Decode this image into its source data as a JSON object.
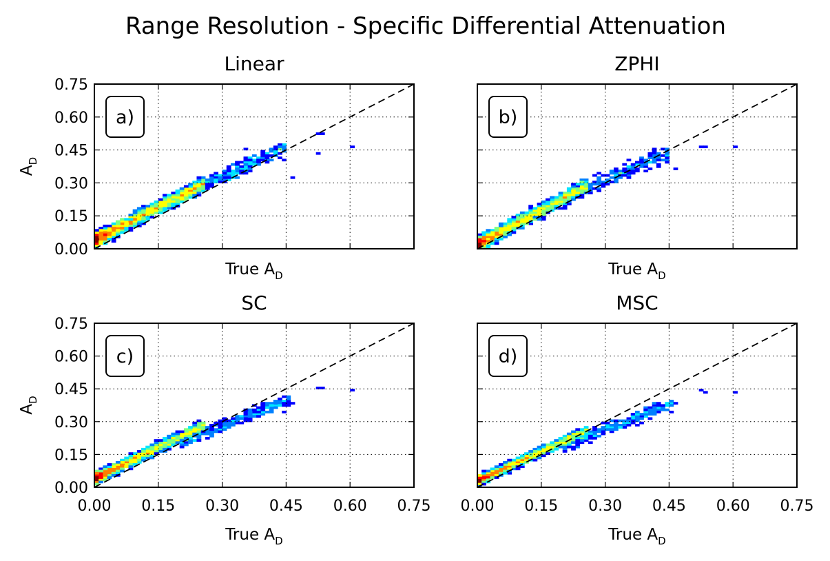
{
  "figure": {
    "title": "Range Resolution - Specific Differential Attenuation"
  },
  "chart_data": [
    {
      "type": "heatmap",
      "panel_label": "a)",
      "title": "Linear",
      "xlabel": "True A",
      "xlabel_sub": "D",
      "ylabel": "A",
      "ylabel_sub": "D",
      "xlim": [
        0,
        0.75
      ],
      "ylim": [
        0,
        0.75
      ],
      "xticks": [
        "0.00",
        "0.15",
        "0.30",
        "0.45",
        "0.60",
        "0.75"
      ],
      "yticks": [
        "0.00",
        "0.15",
        "0.30",
        "0.45",
        "0.60",
        "0.75"
      ],
      "show_xticklabels": false,
      "show_yticklabels": true,
      "show_ylabel": true,
      "grid": true,
      "reference_line": "1:1 dashed",
      "clusters": [
        {
          "x": [
            0.0,
            0.26
          ],
          "y": [
            0.04,
            0.3
          ],
          "y_at_x0": 0.04,
          "slope": 1.0,
          "spread": 0.045,
          "density": "high"
        },
        {
          "x": [
            0.2,
            0.45
          ],
          "y": [
            0.25,
            0.45
          ],
          "y_at_x0": 0.06,
          "slope": 0.9,
          "spread": 0.05,
          "density": "low"
        }
      ],
      "outliers": [
        [
          0.53,
          0.52
        ],
        [
          0.52,
          0.52
        ],
        [
          0.6,
          0.47
        ],
        [
          0.52,
          0.43
        ],
        [
          0.44,
          0.4
        ],
        [
          0.46,
          0.32
        ],
        [
          0.35,
          0.45
        ]
      ]
    },
    {
      "type": "heatmap",
      "panel_label": "b)",
      "title": "ZPHI",
      "xlabel": "True A",
      "xlabel_sub": "D",
      "ylabel": "A",
      "ylabel_sub": "D",
      "xlim": [
        0,
        0.75
      ],
      "ylim": [
        0,
        0.75
      ],
      "xticks": [
        "0.00",
        "0.15",
        "0.30",
        "0.45",
        "0.60",
        "0.75"
      ],
      "yticks": [
        "0.00",
        "0.15",
        "0.30",
        "0.45",
        "0.60",
        "0.75"
      ],
      "show_xticklabels": false,
      "show_yticklabels": false,
      "show_ylabel": false,
      "grid": true,
      "reference_line": "1:1 dashed",
      "clusters": [
        {
          "x": [
            0.0,
            0.26
          ],
          "y": [
            0.02,
            0.3
          ],
          "y_at_x0": 0.02,
          "slope": 1.05,
          "spread": 0.045,
          "density": "high"
        },
        {
          "x": [
            0.2,
            0.45
          ],
          "y": [
            0.25,
            0.42
          ],
          "y_at_x0": 0.06,
          "slope": 0.85,
          "spread": 0.05,
          "density": "low"
        }
      ],
      "outliers": [
        [
          0.53,
          0.47
        ],
        [
          0.52,
          0.46
        ],
        [
          0.6,
          0.46
        ],
        [
          0.44,
          0.39
        ],
        [
          0.46,
          0.36
        ],
        [
          0.35,
          0.4
        ]
      ]
    },
    {
      "type": "heatmap",
      "panel_label": "c)",
      "title": "SC",
      "xlabel": "True A",
      "xlabel_sub": "D",
      "ylabel": "A",
      "ylabel_sub": "D",
      "xlim": [
        0,
        0.75
      ],
      "ylim": [
        0,
        0.75
      ],
      "xticks": [
        "0.00",
        "0.15",
        "0.30",
        "0.45",
        "0.60",
        "0.75"
      ],
      "yticks": [
        "0.00",
        "0.15",
        "0.30",
        "0.45",
        "0.60",
        "0.75"
      ],
      "show_xticklabels": true,
      "show_yticklabels": true,
      "show_ylabel": true,
      "grid": true,
      "reference_line": "1:1 dashed",
      "clusters": [
        {
          "x": [
            0.0,
            0.26
          ],
          "y": [
            0.04,
            0.27
          ],
          "y_at_x0": 0.04,
          "slope": 0.95,
          "spread": 0.035,
          "density": "high"
        },
        {
          "x": [
            0.2,
            0.46
          ],
          "y": [
            0.2,
            0.38
          ],
          "y_at_x0": 0.04,
          "slope": 0.8,
          "spread": 0.04,
          "density": "low"
        }
      ],
      "outliers": [
        [
          0.53,
          0.45
        ],
        [
          0.52,
          0.45
        ],
        [
          0.6,
          0.44
        ],
        [
          0.46,
          0.38
        ],
        [
          0.44,
          0.34
        ]
      ]
    },
    {
      "type": "heatmap",
      "panel_label": "d)",
      "title": "MSC",
      "xlabel": "True A",
      "xlabel_sub": "D",
      "ylabel": "A",
      "ylabel_sub": "D",
      "xlim": [
        0,
        0.75
      ],
      "ylim": [
        0,
        0.75
      ],
      "xticks": [
        "0.00",
        "0.15",
        "0.30",
        "0.45",
        "0.60",
        "0.75"
      ],
      "yticks": [
        "0.00",
        "0.15",
        "0.30",
        "0.45",
        "0.60",
        "0.75"
      ],
      "show_xticklabels": true,
      "show_yticklabels": false,
      "show_ylabel": false,
      "grid": true,
      "reference_line": "1:1 dashed",
      "clusters": [
        {
          "x": [
            0.0,
            0.26
          ],
          "y": [
            0.03,
            0.25
          ],
          "y_at_x0": 0.03,
          "slope": 0.9,
          "spread": 0.03,
          "density": "high"
        },
        {
          "x": [
            0.2,
            0.46
          ],
          "y": [
            0.18,
            0.36
          ],
          "y_at_x0": 0.03,
          "slope": 0.78,
          "spread": 0.04,
          "density": "low"
        }
      ],
      "outliers": [
        [
          0.53,
          0.43
        ],
        [
          0.52,
          0.44
        ],
        [
          0.6,
          0.43
        ],
        [
          0.46,
          0.38
        ],
        [
          0.45,
          0.34
        ],
        [
          0.38,
          0.31
        ]
      ]
    }
  ],
  "colors": {
    "colormap": "jet",
    "scale": [
      "#00007f",
      "#0000ff",
      "#007fff",
      "#00e5ff",
      "#7fff7f",
      "#ffff00",
      "#ff7f00",
      "#ff0000",
      "#7f0000"
    ],
    "reference_line": "#000000"
  }
}
